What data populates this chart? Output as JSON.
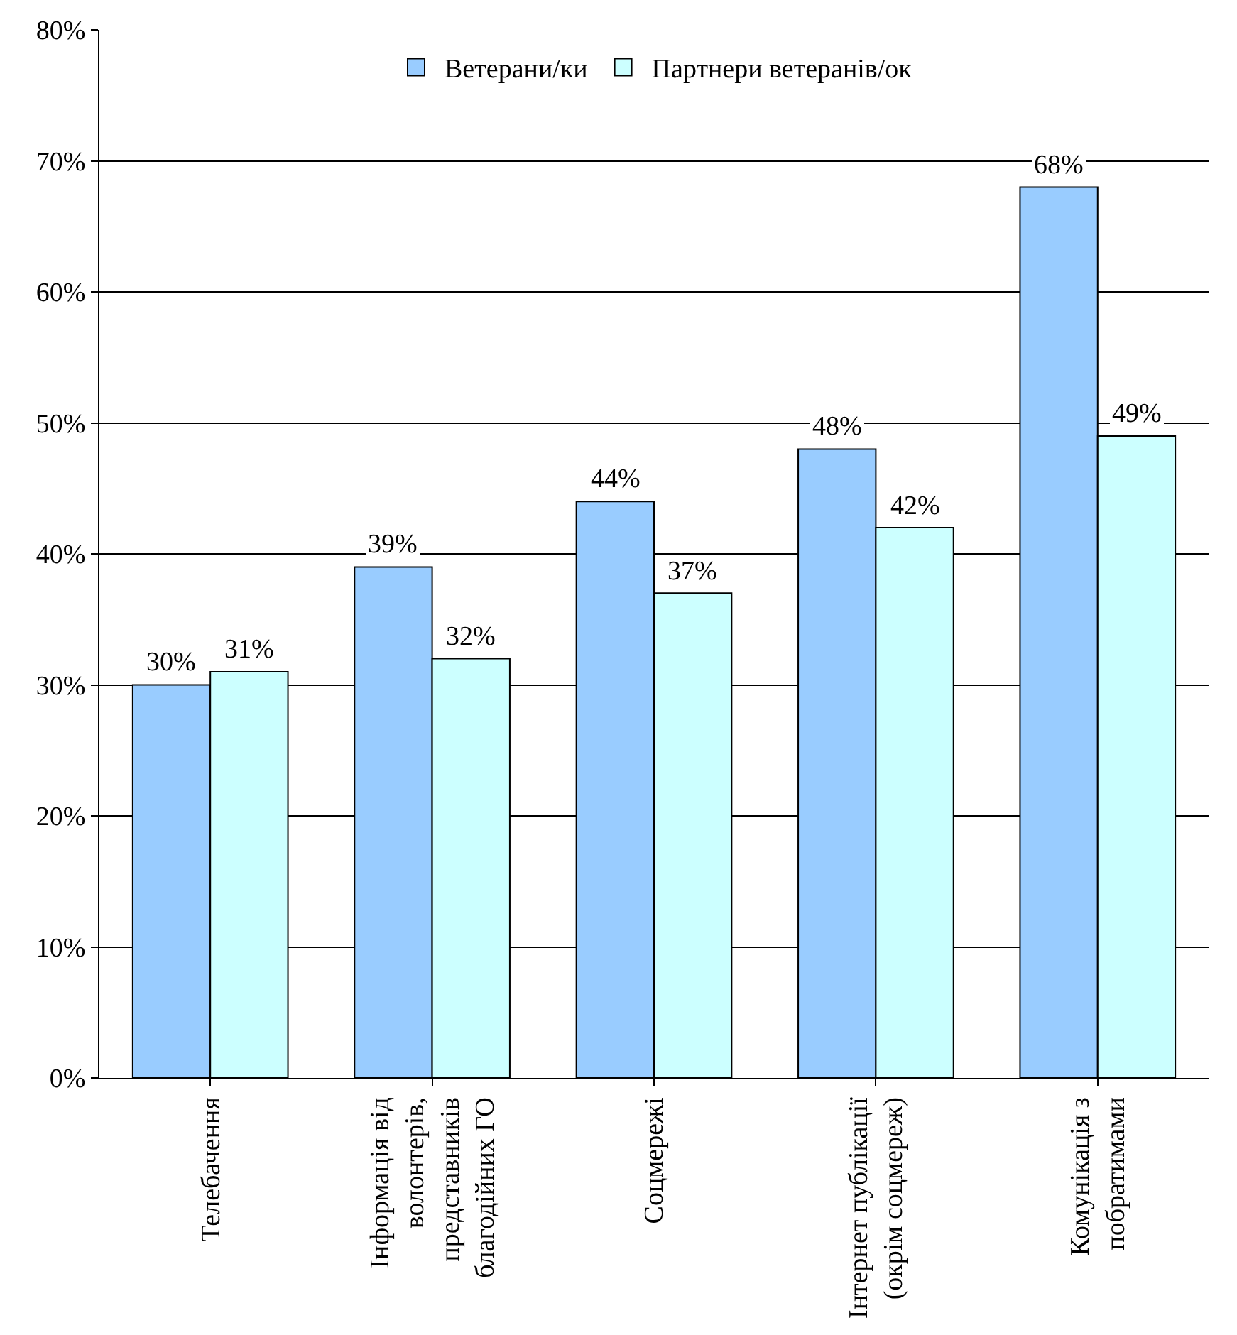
{
  "chart_data": {
    "type": "bar",
    "categories": [
      "Телебачення",
      "Інформація від волонтерів, представників благодійних ГО",
      "Соцмережі",
      "Інтернет публікації (окрім соцмереж)",
      "Комунікація з побратимами"
    ],
    "series": [
      {
        "name": "Ветерани/ки",
        "color": "#99ccff",
        "values": [
          30,
          39,
          44,
          48,
          68
        ],
        "value_labels": [
          "30%",
          "39%",
          "44%",
          "48%",
          "68%"
        ]
      },
      {
        "name": "Партнери ветеранів/ок",
        "color": "#ccffff",
        "values": [
          31,
          32,
          37,
          42,
          49
        ],
        "value_labels": [
          "31%",
          "32%",
          "37%",
          "42%",
          "49%"
        ]
      }
    ],
    "ylim": [
      0,
      80
    ],
    "yticks": [
      {
        "value": 0,
        "label": "0%"
      },
      {
        "value": 10,
        "label": "10%"
      },
      {
        "value": 20,
        "label": "20%"
      },
      {
        "value": 30,
        "label": "30%"
      },
      {
        "value": 40,
        "label": "40%"
      },
      {
        "value": 50,
        "label": "50%"
      },
      {
        "value": 60,
        "label": "60%"
      },
      {
        "value": 70,
        "label": "70%"
      },
      {
        "value": 80,
        "label": "80%"
      }
    ],
    "grid": "y",
    "legend": "top"
  }
}
